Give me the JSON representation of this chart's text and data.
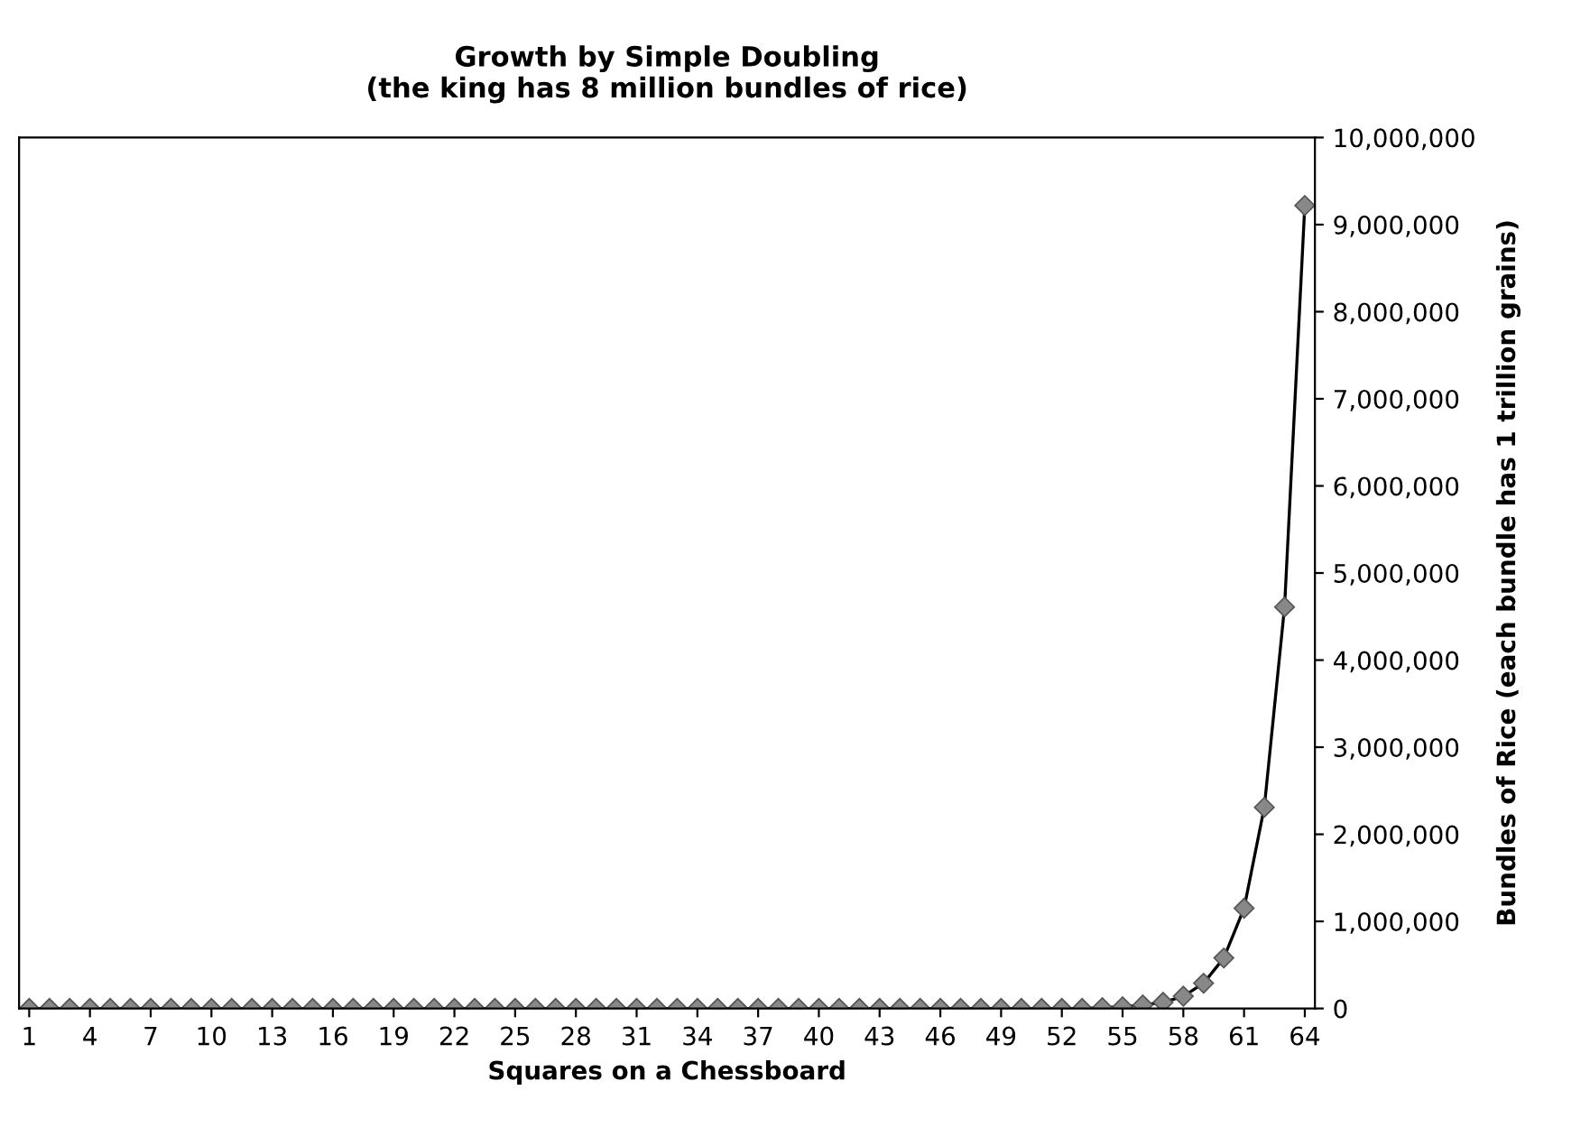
{
  "chart_data": {
    "type": "line",
    "title": "Growth by Simple Doubling\n(the king has 8 million bundles of rice)",
    "xlabel": "Squares on a Chessboard",
    "ylabel": "Bundles of Rice (each bundle has 1 trillion grains)",
    "categories": [
      "1",
      null,
      null,
      "4",
      null,
      null,
      "7",
      null,
      null,
      "10",
      null,
      null,
      "13",
      null,
      null,
      "16",
      null,
      null,
      "19",
      null,
      null,
      "22",
      null,
      null,
      "25",
      null,
      null,
      "28",
      null,
      null,
      "31",
      null,
      null,
      "34",
      null,
      null,
      "37",
      null,
      null,
      "40",
      null,
      null,
      "43",
      null,
      null,
      "46",
      null,
      null,
      "49",
      null,
      null,
      "52",
      null,
      null,
      "55",
      null,
      null,
      "58",
      null,
      null,
      "61",
      null,
      null,
      "64"
    ],
    "series": [
      {
        "color": "#888888",
        "values": [
          0,
          0,
          0,
          0,
          0,
          0,
          0,
          0,
          0,
          0,
          0,
          0,
          0,
          0,
          0,
          0,
          0,
          0,
          0,
          0,
          0,
          0,
          0,
          0,
          0,
          0,
          0,
          0,
          0,
          0,
          0,
          0,
          0,
          0,
          0,
          0,
          0,
          0,
          0,
          0,
          0,
          0,
          0,
          0,
          0,
          0,
          0,
          0,
          0,
          0,
          0,
          0,
          0,
          10000,
          20000,
          40000,
          70000,
          140000,
          290000,
          580000,
          1150000,
          2310000,
          4610000,
          9220000
        ]
      }
    ],
    "ylim": [
      0,
      10000000
    ],
    "yticks": [
      0,
      {
        "value": 1000000,
        "label": "1,000,000"
      },
      {
        "value": 2000000,
        "label": "2,000,000"
      },
      {
        "value": 3000000,
        "label": "3,000,000"
      },
      {
        "value": 4000000,
        "label": "4,000,000"
      },
      {
        "value": 5000000,
        "label": "5,000,000"
      },
      {
        "value": 6000000,
        "label": "6,000,000"
      },
      {
        "value": 7000000,
        "label": "7,000,000"
      },
      {
        "value": 8000000,
        "label": "8,000,000"
      },
      {
        "value": 9000000,
        "label": "9,000,000"
      },
      {
        "value": 10000000,
        "label": "10,000,000"
      }
    ],
    "marker": "diamond",
    "line_style": "solid",
    "grid": false
  }
}
